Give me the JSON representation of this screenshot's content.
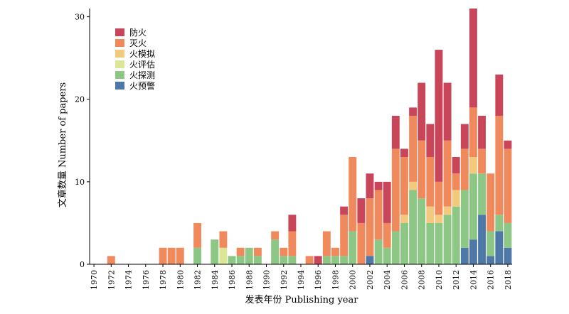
{
  "chart_data": {
    "type": "bar",
    "stacked": true,
    "xlabel": "发表年份 Publishing year",
    "ylabel": "文章数量 Number of papers",
    "ylim": [
      0,
      31
    ],
    "yticks": [
      0,
      10,
      20,
      30
    ],
    "grid": false,
    "legend_position": "top-left",
    "categories": [
      1970,
      1971,
      1972,
      1973,
      1974,
      1975,
      1976,
      1977,
      1978,
      1979,
      1980,
      1981,
      1982,
      1983,
      1984,
      1985,
      1986,
      1987,
      1988,
      1989,
      1990,
      1991,
      1992,
      1993,
      1994,
      1995,
      1996,
      1997,
      1998,
      1999,
      2000,
      2001,
      2002,
      2003,
      2004,
      2005,
      2006,
      2007,
      2008,
      2009,
      2010,
      2011,
      2012,
      2013,
      2014,
      2015,
      2016,
      2017,
      2018
    ],
    "xtick_labels": [
      "1970",
      "1972",
      "1974",
      "1976",
      "1978",
      "1980",
      "1982",
      "1984",
      "1986",
      "1988",
      "1990",
      "1992",
      "1994",
      "1996",
      "1998",
      "2000",
      "2002",
      "2004",
      "2006",
      "2008",
      "2010",
      "2012",
      "2014",
      "2016",
      "2018"
    ],
    "series": [
      {
        "name": "火预警",
        "color": "#4e78a8",
        "values": [
          0,
          0,
          0,
          0,
          0,
          0,
          0,
          0,
          0,
          0,
          0,
          0,
          0,
          0,
          0,
          0,
          0,
          0,
          0,
          0,
          0,
          0,
          0,
          0,
          0,
          0,
          0,
          0,
          0,
          0,
          0,
          0,
          1,
          0,
          0,
          0,
          0,
          0,
          0,
          0,
          0,
          0,
          0,
          2,
          3,
          6,
          1,
          4,
          2
        ]
      },
      {
        "name": "火探测",
        "color": "#8cc785",
        "values": [
          0,
          0,
          0,
          0,
          0,
          0,
          0,
          0,
          0,
          0,
          0,
          0,
          2,
          0,
          3,
          0,
          1,
          1,
          2,
          1,
          0,
          3,
          1,
          1,
          0,
          0,
          0,
          1,
          1,
          1,
          4,
          0,
          0,
          3,
          2,
          4,
          5,
          9,
          8,
          5,
          5,
          6,
          7,
          7,
          8,
          5,
          3,
          2,
          3
        ]
      },
      {
        "name": "火评估",
        "color": "#dbe796",
        "values": [
          0,
          0,
          0,
          0,
          0,
          0,
          0,
          0,
          0,
          0,
          0,
          0,
          0,
          0,
          0,
          2,
          0,
          0,
          0,
          0,
          0,
          0,
          0,
          0,
          0,
          0,
          0,
          0,
          0,
          0,
          0,
          0,
          0,
          0,
          0,
          0,
          0,
          0,
          0,
          0,
          0,
          0,
          0,
          0,
          0,
          0,
          0,
          0,
          0
        ]
      },
      {
        "name": "火模拟",
        "color": "#f3c97d",
        "values": [
          0,
          0,
          0,
          0,
          0,
          0,
          0,
          0,
          0,
          0,
          0,
          0,
          0,
          0,
          0,
          0,
          0,
          0,
          0,
          0,
          0,
          0,
          0,
          0,
          0,
          0,
          0,
          0,
          0,
          0,
          0,
          0,
          0,
          0,
          0,
          0,
          1,
          1,
          0,
          2,
          1,
          1,
          2,
          0,
          2,
          0,
          0,
          0,
          0
        ]
      },
      {
        "name": "灭火",
        "color": "#f08a5d",
        "values": [
          0,
          0,
          1,
          0,
          0,
          0,
          0,
          0,
          2,
          2,
          2,
          0,
          3,
          0,
          0,
          2,
          0,
          1,
          0,
          1,
          0,
          1,
          1,
          3,
          0,
          1,
          0,
          3,
          1,
          5,
          9,
          5,
          7,
          6,
          3,
          10,
          7,
          8,
          7,
          6,
          4,
          8,
          2,
          5,
          6,
          3,
          7,
          12,
          9
        ]
      },
      {
        "name": "防火",
        "color": "#c8455a",
        "values": [
          0,
          0,
          0,
          0,
          0,
          0,
          0,
          0,
          0,
          0,
          0,
          0,
          0,
          0,
          0,
          0,
          0,
          0,
          0,
          0,
          0,
          0,
          0,
          2,
          0,
          0,
          1,
          0,
          0,
          1,
          0,
          3,
          3,
          1,
          5,
          4,
          1,
          1,
          7,
          4,
          16,
          7,
          2,
          3,
          12,
          4,
          0,
          5,
          1
        ]
      }
    ]
  }
}
